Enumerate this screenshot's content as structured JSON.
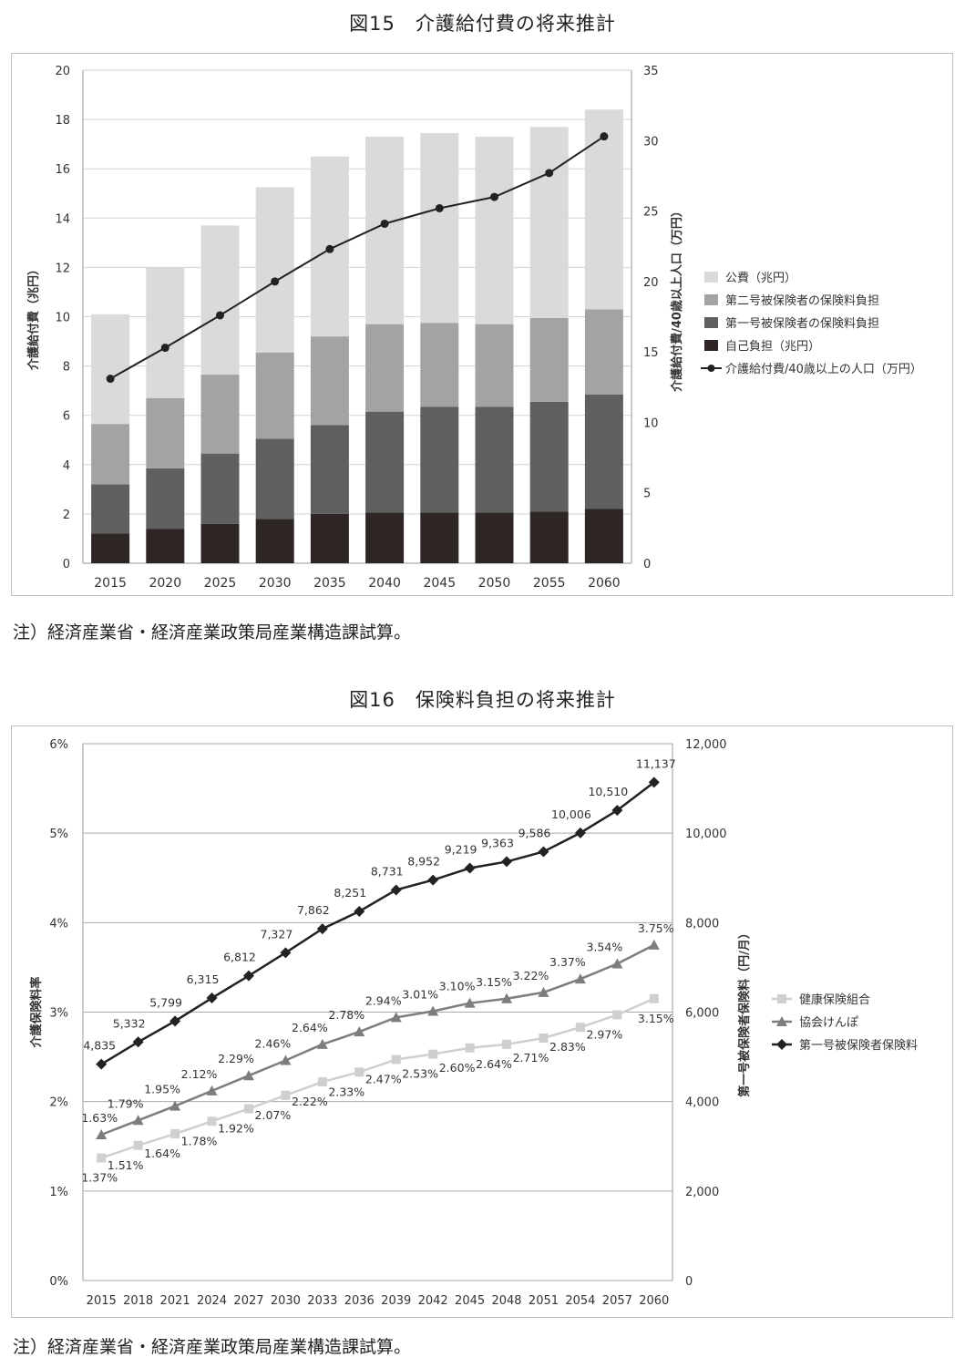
{
  "figure15": {
    "title": "図15　介護給付費の将来推計",
    "note": "注）経済産業省・経済産業政策局産業構造課試算。",
    "chart_data": {
      "type": "bar",
      "stacked": true,
      "categories": [
        "2015",
        "2020",
        "2025",
        "2030",
        "2035",
        "2040",
        "2045",
        "2050",
        "2055",
        "2060"
      ],
      "ylabel": "介護給付費（兆円）",
      "y2label": "介護給付費/40歳以上人口（万円）",
      "ylim": [
        0,
        20
      ],
      "yticks": [
        0,
        2,
        4,
        6,
        8,
        10,
        12,
        14,
        16,
        18,
        20
      ],
      "y2lim": [
        0,
        35
      ],
      "y2ticks": [
        0,
        5,
        10,
        15,
        20,
        25,
        30,
        35
      ],
      "grid": true,
      "legend_position": "right",
      "series": [
        {
          "name": "自己負担（兆円）",
          "color": "#2d2624",
          "values": [
            1.2,
            1.4,
            1.6,
            1.8,
            2.0,
            2.05,
            2.05,
            2.05,
            2.1,
            2.2
          ]
        },
        {
          "name": "第一号被保険者の保険料負担",
          "color": "#5f5f5f",
          "values": [
            2.0,
            2.45,
            2.85,
            3.25,
            3.6,
            4.1,
            4.3,
            4.3,
            4.45,
            4.65
          ]
        },
        {
          "name": "第二号被保険者の保険料負担",
          "color": "#a3a3a3",
          "values": [
            2.45,
            2.85,
            3.2,
            3.5,
            3.6,
            3.55,
            3.4,
            3.35,
            3.4,
            3.45
          ]
        },
        {
          "name": "公費（兆円）",
          "color": "#dadada",
          "values": [
            4.45,
            5.3,
            6.05,
            6.7,
            7.3,
            7.6,
            7.7,
            7.6,
            7.75,
            8.1
          ]
        }
      ],
      "line": {
        "name": "介護給付費/40歳以上の人口（万円）",
        "axis": "right",
        "color": "#222222",
        "values": [
          13.1,
          15.3,
          17.6,
          20.0,
          22.3,
          24.1,
          25.2,
          26.0,
          27.7,
          30.3
        ]
      }
    }
  },
  "figure16": {
    "title": "図16　保険料負担の将来推計",
    "note": "注）経済産業省・経済産業政策局産業構造課試算。",
    "chart_data": {
      "type": "line",
      "categories": [
        "2015",
        "2018",
        "2021",
        "2024",
        "2027",
        "2030",
        "2033",
        "2036",
        "2039",
        "2042",
        "2045",
        "2048",
        "2051",
        "2054",
        "2057",
        "2060"
      ],
      "ylabel": "介護保険料率",
      "y2label": "第一号被保険者保険料（円/月）",
      "ylim": [
        0,
        6
      ],
      "yticks": [
        "0%",
        "1%",
        "2%",
        "3%",
        "4%",
        "5%",
        "6%"
      ],
      "y2lim": [
        0,
        12000
      ],
      "y2ticks": [
        "0",
        "2,000",
        "4,000",
        "6,000",
        "8,000",
        "10,000",
        "12,000"
      ],
      "grid": true,
      "legend_position": "right",
      "series": [
        {
          "name": "健康保険組合",
          "axis": "left",
          "color": "#cfcfcf",
          "marker": "square",
          "values": [
            1.37,
            1.51,
            1.64,
            1.78,
            1.92,
            2.07,
            2.22,
            2.33,
            2.47,
            2.53,
            2.6,
            2.64,
            2.71,
            2.83,
            2.97,
            3.15
          ],
          "labels": [
            "1.37%",
            "1.51%",
            "1.64%",
            "1.78%",
            "1.92%",
            "2.07%",
            "2.22%",
            "2.33%",
            "2.47%",
            "2.53%",
            "2.60%",
            "2.64%",
            "2.71%",
            "2.83%",
            "2.97%",
            "3.15%"
          ]
        },
        {
          "name": "協会けんぽ",
          "axis": "left",
          "color": "#7d7d7d",
          "marker": "triangle",
          "values": [
            1.63,
            1.79,
            1.95,
            2.12,
            2.29,
            2.46,
            2.64,
            2.78,
            2.94,
            3.01,
            3.1,
            3.15,
            3.22,
            3.37,
            3.54,
            3.75
          ],
          "labels": [
            "1.63%",
            "1.79%",
            "1.95%",
            "2.12%",
            "2.29%",
            "2.46%",
            "2.64%",
            "2.78%",
            "2.94%",
            "3.01%",
            "3.10%",
            "3.15%",
            "3.22%",
            "3.37%",
            "3.54%",
            "3.75%"
          ]
        },
        {
          "name": "第一号被保険者保険料",
          "axis": "right",
          "color": "#222222",
          "marker": "diamond",
          "values": [
            4835,
            5332,
            5799,
            6315,
            6812,
            7327,
            7862,
            8251,
            8731,
            8952,
            9219,
            9363,
            9586,
            10006,
            10510,
            11137
          ],
          "labels": [
            "4,835",
            "5,332",
            "5,799",
            "6,315",
            "6,812",
            "7,327",
            "7,862",
            "8,251",
            "8,731",
            "8,952",
            "9,219",
            "9,363",
            "9,586",
            "10,006",
            "10,510",
            "11,137"
          ]
        }
      ]
    }
  }
}
